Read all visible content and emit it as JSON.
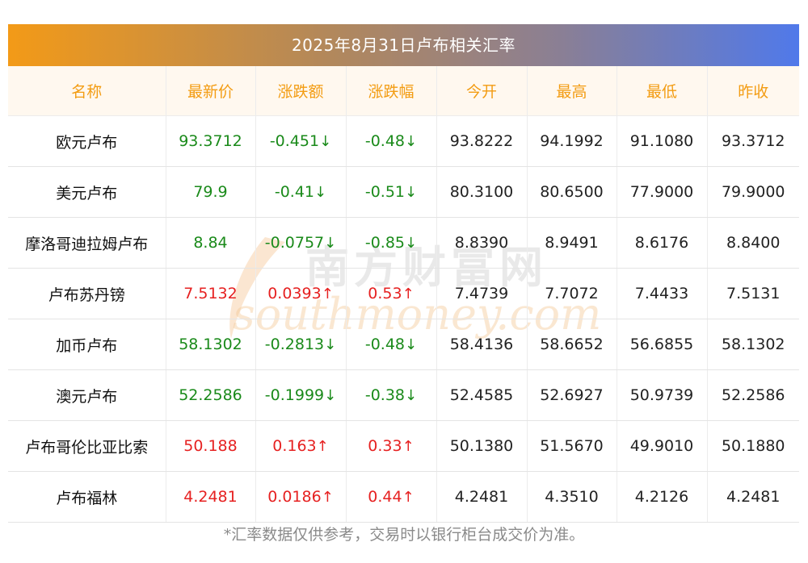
{
  "title": "2025年8月31日卢布相关汇率",
  "headers": [
    "名称",
    "最新价",
    "涨跌额",
    "涨跌幅",
    "今开",
    "最高",
    "最低",
    "昨收"
  ],
  "rows": [
    {
      "name": "欧元卢布",
      "latest": "93.3712",
      "change": "-0.451",
      "change_pct": "-0.48",
      "direction": "down",
      "open": "93.8222",
      "high": "94.1992",
      "low": "91.1080",
      "prev_close": "93.3712"
    },
    {
      "name": "美元卢布",
      "latest": "79.9",
      "change": "-0.41",
      "change_pct": "-0.51",
      "direction": "down",
      "open": "80.3100",
      "high": "80.6500",
      "low": "77.9000",
      "prev_close": "79.9000"
    },
    {
      "name": "摩洛哥迪拉姆卢布",
      "latest": "8.84",
      "change": "-0.0757",
      "change_pct": "-0.85",
      "direction": "down",
      "open": "8.8390",
      "high": "8.9491",
      "low": "8.6176",
      "prev_close": "8.8400"
    },
    {
      "name": "卢布苏丹镑",
      "latest": "7.5132",
      "change": "0.0393",
      "change_pct": "0.53",
      "direction": "up",
      "open": "7.4739",
      "high": "7.7072",
      "low": "7.4433",
      "prev_close": "7.5131"
    },
    {
      "name": "加币卢布",
      "latest": "58.1302",
      "change": "-0.2813",
      "change_pct": "-0.48",
      "direction": "down",
      "open": "58.4136",
      "high": "58.6652",
      "low": "56.6855",
      "prev_close": "58.1302"
    },
    {
      "name": "澳元卢布",
      "latest": "52.2586",
      "change": "-0.1999",
      "change_pct": "-0.38",
      "direction": "down",
      "open": "52.4585",
      "high": "52.6927",
      "low": "50.9739",
      "prev_close": "52.2586"
    },
    {
      "name": "卢布哥伦比亚比索",
      "latest": "50.188",
      "change": "0.163",
      "change_pct": "0.33",
      "direction": "up",
      "open": "50.1380",
      "high": "51.5670",
      "low": "49.9010",
      "prev_close": "50.1880"
    },
    {
      "name": "卢布福林",
      "latest": "4.2481",
      "change": "0.0186",
      "change_pct": "0.44",
      "direction": "up",
      "open": "4.2481",
      "high": "4.3510",
      "low": "4.2126",
      "prev_close": "4.2481"
    }
  ],
  "arrows": {
    "up": "↑",
    "down": "↓"
  },
  "colors": {
    "up": "#e62121",
    "down": "#1a8a1a",
    "header_text": "#f39c12"
  },
  "watermark": {
    "cn": "南方财富网",
    "en": "southmoney.com"
  },
  "footer": "*汇率数据仅供参考，交易时以银行柜台成交价为准。"
}
